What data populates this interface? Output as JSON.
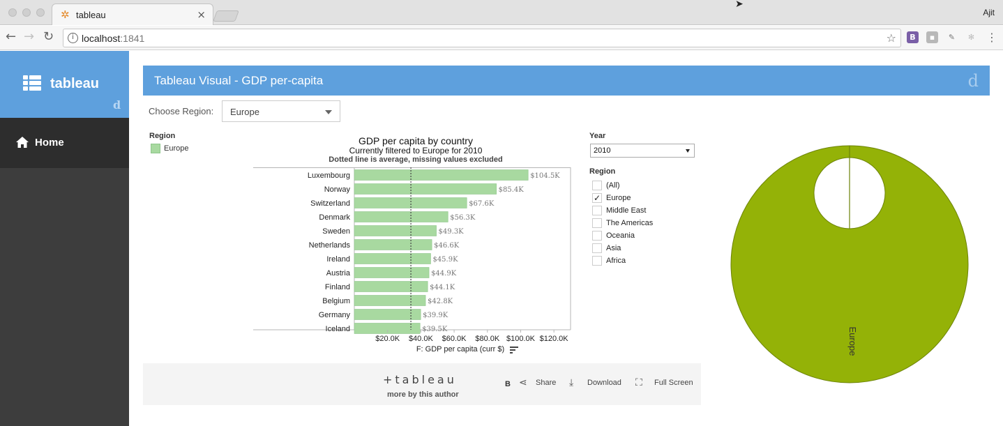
{
  "browser": {
    "tab_title": "tableau",
    "close_glyph": "×",
    "url_host": "localhost",
    "url_port": ":1841",
    "profile_name": "Ajit",
    "back_glyph": "←",
    "forward_glyph": "→",
    "reload_glyph": "↻",
    "star_glyph": "☆",
    "menu_glyph": "⋮",
    "info_glyph": "i",
    "extensions": [
      {
        "name": "bootstrap-extension-icon",
        "glyph": "B",
        "color": "#7a5fa7"
      },
      {
        "name": "extension-square-icon",
        "glyph": "▪",
        "color": "#b8b8b8"
      },
      {
        "name": "eyedropper-extension-icon",
        "glyph": "✎",
        "color": "#9a9a9a"
      },
      {
        "name": "snowflake-extension-icon",
        "glyph": "✻",
        "color": "#c4c4c4"
      }
    ]
  },
  "sidebar": {
    "brand": "tableau",
    "brand_mark": "d",
    "home_label": "Home"
  },
  "header": {
    "title": "Tableau Visual - GDP per-capita",
    "mark": "d"
  },
  "controls": {
    "choose_region_label": "Choose Region:",
    "region_value": "Europe"
  },
  "viz": {
    "legend_title": "Region",
    "legend_item": "Europe",
    "year_title": "Year",
    "year_value": "2010",
    "region_filter_title": "Region",
    "region_filter": [
      {
        "label": "(All)",
        "checked": false
      },
      {
        "label": "Europe",
        "checked": true
      },
      {
        "label": "Middle East",
        "checked": false
      },
      {
        "label": "The Americas",
        "checked": false
      },
      {
        "label": "Oceania",
        "checked": false
      },
      {
        "label": "Asia",
        "checked": false
      },
      {
        "label": "Africa",
        "checked": false
      }
    ],
    "check_glyph": "✓",
    "footer": {
      "logo": "+tableau",
      "more_by_author": "more by this author",
      "b_label": "B",
      "share": "Share",
      "download": "Download",
      "full_screen": "Full Screen"
    }
  },
  "chart_data": [
    {
      "type": "bar",
      "orientation": "horizontal",
      "title": "GDP per capita by country",
      "subtitle": "Currently filtered to Europe for 2010",
      "note": "Dotted line is average, missing values excluded",
      "xlabel": "F: GDP per capita (curr $)",
      "xlim": [
        0,
        130000
      ],
      "xticks": [
        20000,
        40000,
        60000,
        80000,
        100000,
        120000
      ],
      "xtick_labels": [
        "$20.0K",
        "$40.0K",
        "$60.0K",
        "$80.0K",
        "$100.0K",
        "$120.0K"
      ],
      "average_line": 34000,
      "bar_color": "#a8d9a0",
      "categories": [
        "Luxembourg",
        "Norway",
        "Switzerland",
        "Denmark",
        "Sweden",
        "Netherlands",
        "Ireland",
        "Austria",
        "Finland",
        "Belgium",
        "Germany",
        "Iceland"
      ],
      "values": [
        104500,
        85400,
        67600,
        56300,
        49300,
        46600,
        45900,
        44900,
        44100,
        42800,
        39900,
        39500
      ],
      "value_labels": [
        "$104.5K",
        "$85.4K",
        "$67.6K",
        "$56.3K",
        "$49.3K",
        "$46.6K",
        "$45.9K",
        "$44.9K",
        "$44.1K",
        "$42.8K",
        "$39.9K",
        "$39.5K"
      ]
    },
    {
      "type": "pie",
      "style": "donut",
      "categories": [
        "Europe"
      ],
      "values": [
        100
      ],
      "colors": [
        "#94b207"
      ],
      "labels": [
        "Europe"
      ]
    }
  ]
}
